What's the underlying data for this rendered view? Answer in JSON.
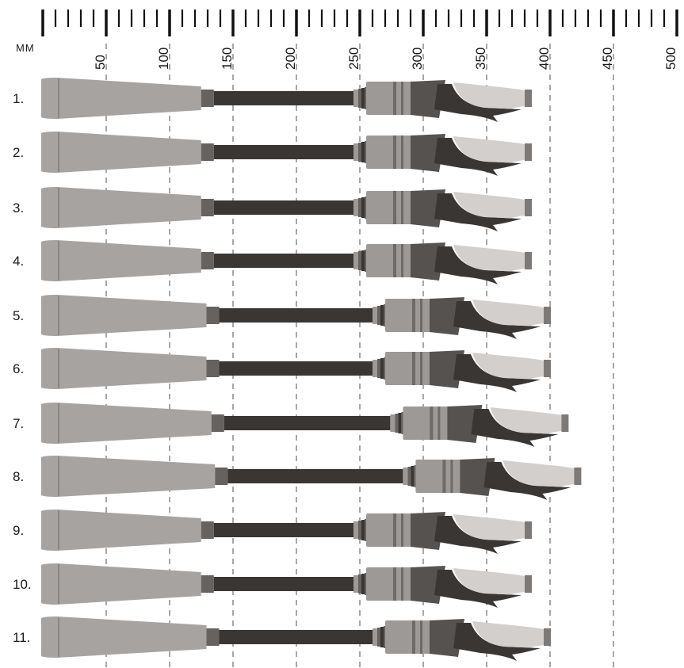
{
  "ruler": {
    "unit": "MM",
    "labels": [
      "50",
      "100",
      "150",
      "200",
      "250",
      "300",
      "350",
      "400",
      "450",
      "500"
    ]
  },
  "handles": [
    {
      "label": "1.",
      "grip_end_mm": 380
    },
    {
      "label": "2.",
      "grip_end_mm": 380
    },
    {
      "label": "3.",
      "grip_end_mm": 380
    },
    {
      "label": "4.",
      "grip_end_mm": 380
    },
    {
      "label": "5.",
      "grip_end_mm": 395
    },
    {
      "label": "6.",
      "grip_end_mm": 395
    },
    {
      "label": "7.",
      "grip_end_mm": 409
    },
    {
      "label": "8.",
      "grip_end_mm": 419
    },
    {
      "label": "9.",
      "grip_end_mm": 380
    },
    {
      "label": "10.",
      "grip_end_mm": 380
    },
    {
      "label": "11.",
      "grip_end_mm": 395
    }
  ],
  "colors": {
    "rear_grip": "#a7a3a0",
    "rear_grip_line": "#8a8683",
    "blank": "#3a3633",
    "ring": "#66625f",
    "reel_seat": "#9d9996",
    "reel_seat_band": "#6e6a67",
    "hood_dark": "#555250",
    "trigger": "#3a3633",
    "fore_grip": "#d2cfcd",
    "end_cap": "#7d7977",
    "guide_line": "#8a8a8a",
    "ruler": "#111111"
  }
}
